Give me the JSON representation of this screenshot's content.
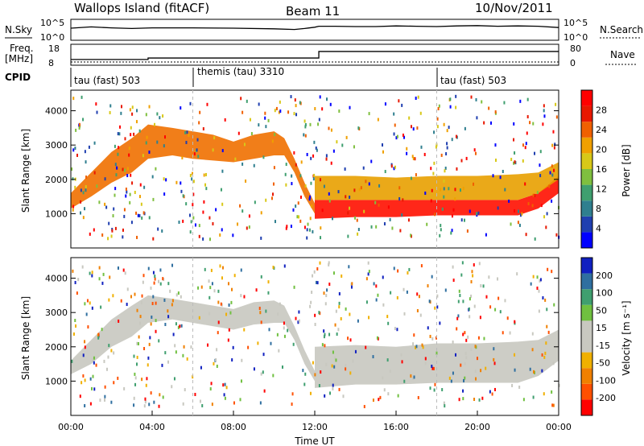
{
  "header": {
    "site": "Wallops Island (fitACF)",
    "beam": "Beam 11",
    "date": "10/Nov/2011"
  },
  "chart_data": [
    {
      "type": "line",
      "panel": "noise",
      "left_label": "N.Sky",
      "right_label": "N.Search",
      "left_ticks": [
        "10^5",
        "10^0"
      ],
      "right_ticks": [
        "10^5",
        "10^0"
      ],
      "series": [
        {
          "name": "N.Sky",
          "x": [
            0,
            1,
            2,
            3,
            4,
            6,
            8,
            10,
            11,
            11.5,
            12,
            12.2,
            13,
            14,
            15,
            16,
            17,
            18,
            19,
            20,
            21,
            22,
            23,
            24
          ],
          "y": [
            3,
            3.4,
            3.1,
            2.9,
            3.1,
            3.1,
            3.0,
            2.8,
            2.6,
            2.9,
            3.3,
            3.6,
            3.6,
            3.5,
            3.5,
            3.7,
            3.6,
            3.5,
            3.7,
            3.8,
            3.6,
            3.7,
            3.6,
            3.2
          ]
        }
      ]
    },
    {
      "type": "line",
      "panel": "frequency",
      "left_label": "Freq.",
      "left_unit": "[MHz]",
      "right_label": "Nave",
      "left_ticks": [
        "18",
        "8"
      ],
      "right_ticks": [
        "80",
        "0"
      ],
      "series": [
        {
          "name": "Freq.",
          "x": [
            0,
            3.8,
            3.8,
            12.2,
            12.2,
            24
          ],
          "y": [
            10.8,
            10.8,
            11.6,
            11.6,
            15.3,
            15.3
          ]
        }
      ]
    },
    {
      "type": "table",
      "panel": "cpid",
      "label": "CPID",
      "segments": [
        {
          "start": 0,
          "end": 6,
          "name": "tau (fast) 503"
        },
        {
          "start": 6,
          "end": 18,
          "name": "themis (tau) 3310"
        },
        {
          "start": 18,
          "end": 24,
          "name": "tau (fast) 503"
        }
      ]
    },
    {
      "type": "heatmap",
      "panel": "power",
      "ylabel": "Slant Range [km]",
      "ylim": [
        0,
        4600
      ],
      "y_ticks": [
        1000,
        2000,
        3000,
        4000
      ],
      "colorbar_label": "Power [dB]",
      "colorbar_range": [
        0,
        32
      ],
      "colorbar_ticks": [
        "28",
        "24",
        "20",
        "16",
        "12",
        "8",
        "4"
      ],
      "colorbar_colors": [
        "#0000ff",
        "#1f3fb0",
        "#2f7f8f",
        "#3f9f6f",
        "#7fbf3f",
        "#d8c818",
        "#f0a000",
        "#f06000",
        "#e81800",
        "#ff0000"
      ],
      "echo_bands": [
        {
          "x": [
            0,
            1,
            2,
            3,
            3.8,
            5,
            6,
            7,
            8,
            9,
            10,
            10.5,
            11,
            11.5,
            12
          ],
          "lower": [
            1150,
            1500,
            1900,
            2200,
            2600,
            2700,
            2600,
            2550,
            2500,
            2600,
            2700,
            2700,
            2200,
            1500,
            1000
          ],
          "upper": [
            1600,
            2200,
            2800,
            3200,
            3600,
            3500,
            3400,
            3300,
            3100,
            3300,
            3400,
            3200,
            2600,
            1900,
            1300
          ],
          "color": "#f07000"
        },
        {
          "x": [
            12,
            14,
            16,
            18,
            20,
            22,
            23,
            24
          ],
          "lower": [
            850,
            900,
            900,
            950,
            950,
            950,
            1150,
            1600
          ],
          "upper": [
            1400,
            1400,
            1400,
            1400,
            1400,
            1400,
            1600,
            2100
          ],
          "color": "#ff1000"
        },
        {
          "x": [
            12,
            14,
            16,
            18,
            20,
            22,
            23,
            24
          ],
          "lower": [
            1400,
            1400,
            1400,
            1400,
            1400,
            1400,
            1600,
            2000
          ],
          "upper": [
            2100,
            2100,
            2050,
            2100,
            2100,
            2150,
            2200,
            2500
          ],
          "color": "#e8a000"
        }
      ]
    },
    {
      "type": "heatmap",
      "panel": "velocity",
      "ylabel": "Slant Range [km]",
      "ylim": [
        0,
        4600
      ],
      "y_ticks": [
        1000,
        2000,
        3000,
        4000
      ],
      "colorbar_label": "Velocity [m s⁻¹]",
      "colorbar_range": [
        -250,
        250
      ],
      "colorbar_ticks": [
        "200",
        "100",
        "50",
        "15",
        "-15",
        "-50",
        "-100",
        "-200"
      ],
      "colorbar_colors": [
        "#ff0000",
        "#ff5000",
        "#f08000",
        "#f0b000",
        "#c8c8c0",
        "#c8c8c0",
        "#70c040",
        "#3f9f6f",
        "#2f6fa0",
        "#1020c0"
      ],
      "echo_bands": [
        {
          "x": [
            0,
            1,
            2,
            3,
            3.8,
            5,
            6,
            7,
            8,
            9,
            10,
            10.5,
            11,
            11.5,
            12
          ],
          "lower": [
            1200,
            1500,
            2000,
            2300,
            2700,
            2800,
            2700,
            2600,
            2500,
            2650,
            2700,
            2700,
            2200,
            1500,
            1000
          ],
          "upper": [
            1600,
            2200,
            2800,
            3200,
            3500,
            3400,
            3300,
            3200,
            3100,
            3300,
            3350,
            3200,
            2600,
            1900,
            1300
          ],
          "color": "#c8c8c0"
        },
        {
          "x": [
            12,
            14,
            16,
            18,
            20,
            22,
            23,
            24
          ],
          "lower": [
            800,
            900,
            900,
            950,
            950,
            950,
            1150,
            1600
          ],
          "upper": [
            2000,
            2050,
            2000,
            2100,
            2100,
            2150,
            2200,
            2500
          ],
          "color": "#c8c8c0"
        }
      ]
    }
  ],
  "x_axis": {
    "label": "Time UT",
    "ticks": [
      "00:00",
      "04:00",
      "08:00",
      "12:00",
      "16:00",
      "20:00",
      "00:00"
    ],
    "range": [
      0,
      24
    ]
  }
}
